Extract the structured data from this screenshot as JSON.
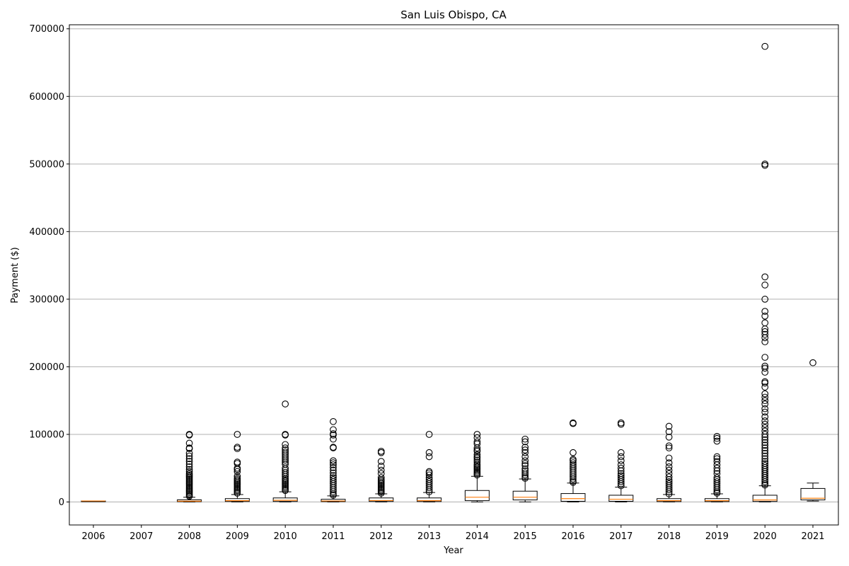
{
  "chart_data": {
    "type": "box",
    "title": "San Luis Obispo, CA",
    "xlabel": "Year",
    "ylabel": "Payment ($)",
    "ylim": [
      -34000,
      706000
    ],
    "yticks": [
      0,
      100000,
      200000,
      300000,
      400000,
      500000,
      600000,
      700000
    ],
    "ytick_labels": [
      "0",
      "100000",
      "200000",
      "300000",
      "400000",
      "500000",
      "600000",
      "700000"
    ],
    "grid": "horizontal",
    "categories": [
      "2006",
      "2007",
      "2008",
      "2009",
      "2010",
      "2011",
      "2012",
      "2013",
      "2014",
      "2015",
      "2016",
      "2017",
      "2018",
      "2019",
      "2020",
      "2021"
    ],
    "colors": {
      "box": "#000000",
      "median": "#ff7f0e",
      "outlier": "#000000",
      "grid": "#b0b0b0"
    },
    "boxes": [
      {
        "year": "2006",
        "whisker_low": 1500,
        "q1": 1500,
        "median": 1500,
        "q3": 1500,
        "whisker_high": 1500,
        "outliers": []
      },
      {
        "year": "2007",
        "empty": true,
        "outliers": []
      },
      {
        "year": "2008",
        "whisker_low": 0,
        "q1": 500,
        "median": 1200,
        "q3": 3200,
        "whisker_high": 7000,
        "outliers": [
          100000,
          99000,
          87000,
          80000,
          79000,
          72000,
          68000,
          64000,
          60000,
          56000,
          52000,
          48000,
          45000,
          42000,
          40000,
          38000,
          36000,
          34000,
          32000,
          30000,
          28000,
          26000,
          24000,
          22000,
          20000,
          18000,
          16000,
          14000,
          12000,
          10000,
          8500
        ]
      },
      {
        "year": "2009",
        "whisker_low": 0,
        "q1": 800,
        "median": 2000,
        "q3": 5000,
        "whisker_high": 11000,
        "outliers": [
          100000,
          81000,
          79000,
          59000,
          57000,
          50000,
          48000,
          45000,
          38000,
          35000,
          33000,
          31000,
          29000,
          27000,
          25000,
          23000,
          21000,
          19000,
          17000,
          15000,
          13000
        ]
      },
      {
        "year": "2010",
        "whisker_low": 0,
        "q1": 800,
        "median": 2500,
        "q3": 6000,
        "whisker_high": 15000,
        "outliers": [
          145000,
          100000,
          99000,
          85000,
          80000,
          77000,
          74000,
          71000,
          68000,
          65000,
          62000,
          59000,
          56000,
          50000,
          47000,
          44000,
          41000,
          38000,
          35000,
          33000,
          31000,
          29000,
          27000,
          25000,
          23000,
          21000,
          19000,
          17000
        ]
      },
      {
        "year": "2011",
        "whisker_low": 0,
        "q1": 600,
        "median": 1500,
        "q3": 4000,
        "whisker_high": 9000,
        "outliers": [
          119000,
          107000,
          101000,
          99000,
          93000,
          81000,
          80000,
          61000,
          58000,
          55000,
          51000,
          47000,
          43000,
          39000,
          36000,
          33000,
          30000,
          27000,
          24000,
          21000,
          18000,
          15000,
          12000,
          10000
        ]
      },
      {
        "year": "2012",
        "whisker_low": 0,
        "q1": 800,
        "median": 2200,
        "q3": 6000,
        "whisker_high": 12000,
        "outliers": [
          75000,
          73000,
          60000,
          53000,
          47000,
          42000,
          36000,
          33000,
          31000,
          29000,
          27000,
          25000,
          23000,
          21000,
          19000,
          17000,
          15000,
          13000
        ]
      },
      {
        "year": "2013",
        "whisker_low": 0,
        "q1": 700,
        "median": 2000,
        "q3": 6000,
        "whisker_high": 14000,
        "outliers": [
          100000,
          73000,
          67000,
          45000,
          43000,
          40000,
          36000,
          33000,
          30000,
          27000,
          24000,
          21000,
          18000,
          15000
        ]
      },
      {
        "year": "2014",
        "whisker_low": 0,
        "q1": 2000,
        "median": 7000,
        "q3": 17000,
        "whisker_high": 38000,
        "outliers": [
          100000,
          95000,
          89000,
          86000,
          80000,
          77000,
          75000,
          70000,
          67000,
          65000,
          62000,
          59000,
          56000,
          54000,
          52000,
          50000,
          48000,
          46000,
          44000,
          42000,
          40000
        ]
      },
      {
        "year": "2015",
        "whisker_low": 0,
        "q1": 3000,
        "median": 7000,
        "q3": 16000,
        "whisker_high": 34000,
        "outliers": [
          93000,
          89000,
          81000,
          77000,
          73000,
          67000,
          61000,
          57000,
          54000,
          49000,
          46000,
          43000,
          40000,
          37000,
          35000
        ]
      },
      {
        "year": "2016",
        "whisker_low": 0,
        "q1": 1000,
        "median": 5000,
        "q3": 12500,
        "whisker_high": 28000,
        "outliers": [
          117000,
          116000,
          73000,
          63000,
          61000,
          58000,
          55000,
          52000,
          49000,
          46000,
          43000,
          40000,
          37000,
          34000,
          31000,
          29000
        ]
      },
      {
        "year": "2017",
        "whisker_low": 0,
        "q1": 1000,
        "median": 4000,
        "q3": 10000,
        "whisker_high": 22000,
        "outliers": [
          117000,
          115000,
          73000,
          67000,
          61000,
          55000,
          50000,
          46000,
          42000,
          39000,
          36000,
          33000,
          30000,
          27000,
          24000
        ]
      },
      {
        "year": "2018",
        "whisker_low": 0,
        "q1": 600,
        "median": 2000,
        "q3": 5000,
        "whisker_high": 11000,
        "outliers": [
          112000,
          104000,
          96000,
          83000,
          80000,
          65000,
          58000,
          52000,
          47000,
          42000,
          37000,
          33000,
          30000,
          27000,
          24000,
          21000,
          18000,
          15000,
          12000
        ]
      },
      {
        "year": "2019",
        "whisker_low": 0,
        "q1": 600,
        "median": 2000,
        "q3": 5000,
        "whisker_high": 12000,
        "outliers": [
          97000,
          94000,
          90000,
          67000,
          64000,
          60000,
          55000,
          50000,
          46000,
          42000,
          36000,
          33000,
          30000,
          27000,
          24000,
          21000,
          18000,
          15000,
          13000
        ]
      },
      {
        "year": "2020",
        "whisker_low": 0,
        "q1": 800,
        "median": 3000,
        "q3": 10000,
        "whisker_high": 24000,
        "outliers": [
          674000,
          500000,
          498000,
          333000,
          321000,
          300000,
          282000,
          275000,
          265000,
          256000,
          252000,
          248000,
          243000,
          237000,
          214000,
          201000,
          198000,
          192000,
          178000,
          176000,
          170000,
          160000,
          155000,
          150000,
          145000,
          138000,
          133000,
          126000,
          120000,
          115000,
          110000,
          105000,
          100000,
          96000,
          92000,
          88000,
          84000,
          80000,
          76000,
          72000,
          68000,
          64000,
          60000,
          57000,
          54000,
          51000,
          48000,
          45000,
          42000,
          39000,
          36000,
          33000,
          30000,
          27000,
          25000
        ]
      },
      {
        "year": "2021",
        "whisker_low": 1500,
        "q1": 3000,
        "median": 5500,
        "q3": 20000,
        "whisker_high": 28000,
        "outliers": [
          206000
        ]
      }
    ]
  }
}
